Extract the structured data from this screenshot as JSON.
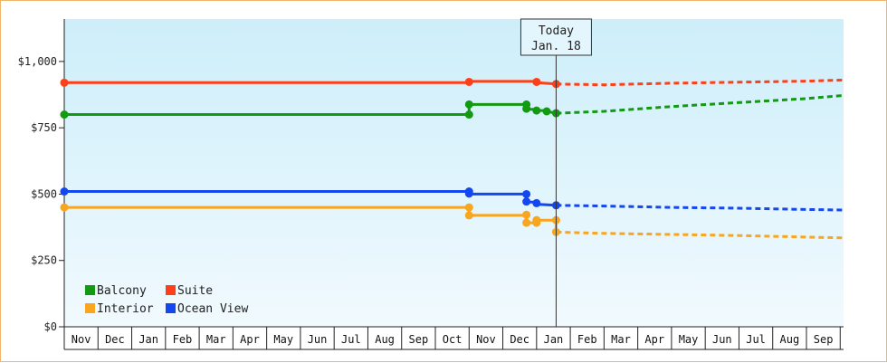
{
  "chart_data": {
    "type": "line",
    "title": "",
    "xlabel": "",
    "ylabel": "",
    "y_ticks": [
      "$1,000",
      "$750",
      "$500",
      "$250",
      "$0"
    ],
    "y_tick_values": [
      1000,
      750,
      500,
      250,
      0
    ],
    "ylim": [
      0,
      1160
    ],
    "x_months": [
      "Nov",
      "Dec",
      "Jan",
      "Feb",
      "Mar",
      "Apr",
      "May",
      "Jun",
      "Jul",
      "Aug",
      "Sep",
      "Oct",
      "Nov",
      "Dec",
      "Jan",
      "Feb",
      "Mar",
      "Apr",
      "May",
      "Jun",
      "Jul",
      "Aug",
      "Sep"
    ],
    "xlim_months": [
      0,
      23.1
    ],
    "today": {
      "label_line1": "Today",
      "label_line2": "Jan. 18",
      "x": 14.58
    },
    "legend": {
      "placement": "bottom-left"
    },
    "grid": false,
    "series": [
      {
        "name": "Suite",
        "color": "#ff3f17",
        "actual": [
          [
            0,
            920
          ],
          [
            12.0,
            920
          ],
          [
            12.0,
            925
          ],
          [
            14.0,
            925
          ],
          [
            14.0,
            920
          ],
          [
            14.58,
            915
          ]
        ],
        "markers": [
          [
            0,
            920
          ],
          [
            12.0,
            923
          ],
          [
            14.0,
            923
          ],
          [
            14.58,
            915
          ]
        ],
        "forecast": [
          [
            14.58,
            915
          ],
          [
            16,
            912
          ],
          [
            18,
            918
          ],
          [
            20,
            922
          ],
          [
            22,
            926
          ],
          [
            23.1,
            930
          ]
        ]
      },
      {
        "name": "Balcony",
        "color": "#129b12",
        "actual": [
          [
            0,
            800
          ],
          [
            12.0,
            800
          ],
          [
            12.0,
            838
          ],
          [
            13.7,
            838
          ],
          [
            13.7,
            820
          ],
          [
            14.0,
            820
          ],
          [
            14.0,
            815
          ],
          [
            14.3,
            815
          ],
          [
            14.3,
            812
          ],
          [
            14.58,
            805
          ]
        ],
        "markers": [
          [
            0,
            800
          ],
          [
            12.0,
            800
          ],
          [
            12.0,
            838
          ],
          [
            13.7,
            838
          ],
          [
            13.7,
            822
          ],
          [
            14.0,
            815
          ],
          [
            14.3,
            812
          ],
          [
            14.58,
            805
          ]
        ],
        "forecast": [
          [
            14.58,
            805
          ],
          [
            16,
            812
          ],
          [
            18,
            830
          ],
          [
            20,
            845
          ],
          [
            22,
            860
          ],
          [
            23.1,
            872
          ]
        ]
      },
      {
        "name": "Ocean View",
        "color": "#1447f0",
        "actual": [
          [
            0,
            510
          ],
          [
            12.0,
            510
          ],
          [
            12.0,
            500
          ],
          [
            13.7,
            500
          ],
          [
            13.7,
            470
          ],
          [
            14.0,
            470
          ],
          [
            14.0,
            462
          ],
          [
            14.58,
            458
          ]
        ],
        "markers": [
          [
            0,
            510
          ],
          [
            12.0,
            510
          ],
          [
            12.0,
            502
          ],
          [
            13.7,
            500
          ],
          [
            13.7,
            472
          ],
          [
            14.0,
            466
          ],
          [
            14.58,
            458
          ]
        ],
        "forecast": [
          [
            14.58,
            458
          ],
          [
            16,
            455
          ],
          [
            18,
            450
          ],
          [
            20,
            447
          ],
          [
            22,
            442
          ],
          [
            23.1,
            440
          ]
        ]
      },
      {
        "name": "Interior",
        "color": "#f9a51d",
        "actual": [
          [
            0,
            450
          ],
          [
            12.0,
            450
          ],
          [
            12.0,
            420
          ],
          [
            13.7,
            420
          ],
          [
            13.7,
            392
          ],
          [
            14.0,
            392
          ],
          [
            14.0,
            402
          ],
          [
            14.58,
            402
          ],
          [
            14.58,
            357
          ]
        ],
        "markers": [
          [
            0,
            450
          ],
          [
            12.0,
            450
          ],
          [
            12.0,
            420
          ],
          [
            13.7,
            422
          ],
          [
            13.7,
            392
          ],
          [
            14.0,
            392
          ],
          [
            14.0,
            402
          ],
          [
            14.58,
            402
          ],
          [
            14.58,
            357
          ]
        ],
        "forecast": [
          [
            14.58,
            357
          ],
          [
            16,
            352
          ],
          [
            18,
            348
          ],
          [
            20,
            344
          ],
          [
            22,
            338
          ],
          [
            23.1,
            335
          ]
        ]
      }
    ],
    "legend_items": [
      {
        "name": "Balcony",
        "color": "#129b12"
      },
      {
        "name": "Suite",
        "color": "#ff3f17"
      },
      {
        "name": "Interior",
        "color": "#f9a51d"
      },
      {
        "name": "Ocean View",
        "color": "#1447f0"
      }
    ]
  }
}
